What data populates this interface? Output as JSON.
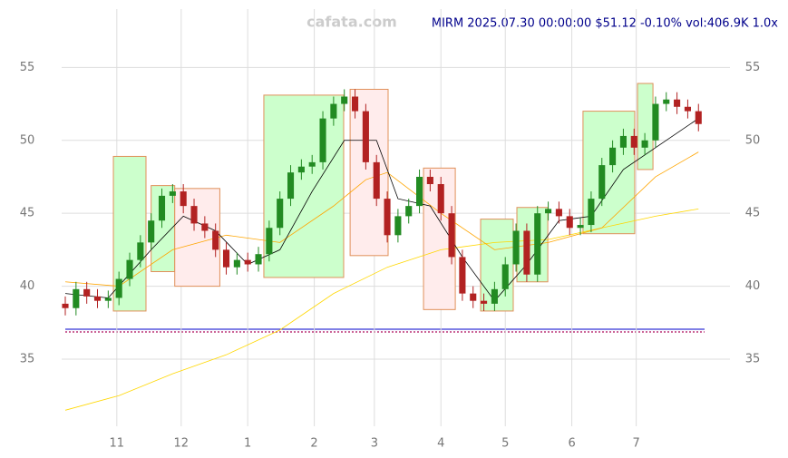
{
  "chart_data": {
    "type": "candlestick",
    "title": "MIRM 2025.07.30 00:00:00 $51.12 -0.10% vol:406.9K 1.0x",
    "watermark": "cafata.com",
    "x": [
      0,
      5,
      10,
      15,
      20,
      25,
      30,
      35,
      40,
      45,
      50,
      55,
      60,
      65,
      70,
      75,
      80,
      85,
      90,
      95,
      100,
      105,
      110,
      115,
      120,
      125,
      130,
      135,
      140,
      145,
      150,
      155,
      160,
      165,
      170,
      175,
      180,
      185,
      190,
      195,
      200,
      205,
      210,
      215,
      220,
      225,
      230,
      235,
      240,
      245,
      250,
      255,
      260,
      265,
      270,
      275,
      280,
      285,
      290,
      295
    ],
    "open": [
      38.8,
      38.5,
      39.8,
      39.3,
      39.0,
      39.2,
      40.5,
      41.8,
      43.0,
      44.5,
      46.2,
      46.5,
      45.5,
      44.3,
      43.8,
      42.5,
      41.3,
      41.8,
      41.5,
      42.2,
      44.0,
      46.0,
      47.8,
      48.2,
      48.5,
      51.5,
      52.5,
      53.0,
      52.0,
      48.5,
      46.0,
      43.5,
      44.8,
      45.5,
      47.5,
      47.0,
      45.0,
      42.0,
      39.5,
      39.0,
      38.8,
      39.8,
      41.5,
      43.8,
      40.8,
      45.0,
      45.3,
      44.8,
      44.0,
      44.2,
      46.0,
      48.3,
      49.5,
      50.3,
      49.5,
      50.0,
      52.5,
      52.8,
      52.3,
      52.0
    ],
    "high": [
      39.3,
      40.3,
      40.3,
      39.8,
      39.7,
      41.0,
      42.3,
      43.5,
      45.0,
      46.7,
      47.0,
      47.0,
      46.0,
      44.8,
      44.3,
      43.0,
      42.3,
      42.3,
      42.7,
      44.5,
      46.5,
      48.3,
      48.7,
      49.0,
      52.0,
      53.0,
      53.5,
      53.5,
      52.5,
      49.0,
      46.5,
      45.3,
      46.0,
      48.0,
      48.0,
      47.5,
      45.5,
      42.5,
      40.0,
      39.5,
      40.3,
      42.0,
      44.3,
      44.3,
      45.5,
      45.8,
      45.8,
      45.3,
      44.7,
      46.5,
      48.8,
      50.0,
      50.8,
      50.8,
      50.5,
      53.0,
      53.3,
      53.3,
      52.8,
      52.5
    ],
    "low": [
      38.0,
      38.0,
      38.8,
      38.5,
      38.5,
      38.7,
      40.0,
      41.3,
      42.5,
      44.0,
      45.7,
      45.0,
      43.8,
      43.3,
      42.0,
      40.8,
      40.8,
      41.0,
      41.0,
      41.7,
      43.5,
      45.5,
      47.3,
      47.7,
      48.0,
      51.0,
      52.0,
      51.5,
      48.0,
      45.5,
      43.0,
      43.0,
      44.3,
      45.0,
      46.5,
      44.5,
      41.5,
      39.0,
      38.5,
      38.3,
      38.3,
      39.3,
      41.0,
      40.3,
      40.3,
      44.5,
      44.3,
      43.5,
      43.5,
      43.7,
      45.5,
      47.8,
      49.0,
      49.0,
      49.0,
      49.5,
      52.0,
      51.8,
      51.5,
      50.62
    ],
    "close": [
      38.5,
      39.8,
      39.3,
      39.0,
      39.2,
      40.5,
      41.8,
      43.0,
      44.5,
      46.2,
      46.5,
      45.5,
      44.3,
      43.8,
      42.5,
      41.3,
      41.8,
      41.5,
      42.2,
      44.0,
      46.0,
      47.8,
      48.2,
      48.5,
      51.5,
      52.5,
      53.0,
      52.0,
      48.5,
      46.0,
      43.5,
      44.8,
      45.5,
      47.5,
      47.0,
      45.0,
      42.0,
      39.5,
      39.0,
      38.8,
      39.8,
      41.5,
      43.8,
      40.8,
      45.0,
      45.3,
      44.8,
      44.0,
      44.2,
      46.0,
      48.3,
      49.5,
      50.3,
      49.5,
      50.0,
      52.5,
      52.8,
      52.3,
      52.0,
      51.12
    ],
    "up_color": "#228b22",
    "down_color": "#b22222",
    "lines": [
      {
        "color": "#ffd700",
        "x": [
          0,
          25,
          50,
          75,
          100,
          125,
          150,
          175,
          200,
          225,
          250,
          275,
          295
        ],
        "values": [
          31.5,
          32.5,
          34.0,
          35.3,
          37.0,
          39.5,
          41.3,
          42.5,
          43.0,
          43.2,
          44.0,
          44.8,
          45.3
        ]
      },
      {
        "color": "#ffa500",
        "x": [
          0,
          25,
          50,
          75,
          100,
          125,
          140,
          150,
          175,
          200,
          225,
          250,
          275,
          295
        ],
        "values": [
          40.3,
          40.0,
          42.5,
          43.5,
          43.0,
          45.5,
          47.3,
          47.8,
          45.0,
          42.5,
          43.0,
          44.0,
          47.5,
          49.2
        ]
      },
      {
        "color": "#000000",
        "x": [
          0,
          20,
          40,
          55,
          70,
          85,
          100,
          115,
          130,
          145,
          155,
          170,
          185,
          200,
          215,
          230,
          245,
          260,
          275,
          295
        ],
        "values": [
          39.5,
          39.2,
          42.5,
          44.8,
          43.8,
          41.5,
          42.5,
          46.5,
          50.0,
          50.0,
          46.0,
          45.5,
          42.0,
          39.0,
          41.5,
          44.5,
          44.8,
          48.0,
          49.5,
          51.5
        ]
      }
    ],
    "boxes": [
      {
        "x": [
          22.4,
          37.6
        ],
        "y": [
          38.3,
          48.9
        ],
        "fill": "#ccffcc"
      },
      {
        "x": [
          40,
          51
        ],
        "y": [
          41.0,
          46.9
        ],
        "fill": "#ccffcc"
      },
      {
        "x": [
          51,
          72
        ],
        "y": [
          40.0,
          46.7
        ],
        "fill": "#ffecec"
      },
      {
        "x": [
          92.5,
          129.7
        ],
        "y": [
          40.6,
          53.1
        ],
        "fill": "#ccffcc"
      },
      {
        "x": [
          132.7,
          150.4
        ],
        "y": [
          42.1,
          53.5
        ],
        "fill": "#ffecec"
      },
      {
        "x": [
          166.9,
          181.7
        ],
        "y": [
          38.4,
          48.1
        ],
        "fill": "#ffecec"
      },
      {
        "x": [
          193.5,
          208.7
        ],
        "y": [
          38.3,
          44.6
        ],
        "fill": "#ccffcc"
      },
      {
        "x": [
          210.4,
          224.8
        ],
        "y": [
          40.3,
          45.4
        ],
        "fill": "#ccffcc"
      },
      {
        "x": [
          241.2,
          265.3
        ],
        "y": [
          43.6,
          52.0
        ],
        "fill": "#ccffcc"
      },
      {
        "x": [
          266.6,
          273.8
        ],
        "y": [
          48.0,
          53.9
        ],
        "fill": "#ccffcc"
      }
    ],
    "xlim": [
      0,
      297
    ],
    "ylim": [
      30.4,
      59.0
    ],
    "xticks": [
      {
        "value": 24,
        "label": "11"
      },
      {
        "value": 54,
        "label": "12"
      },
      {
        "value": 85,
        "label": "1"
      },
      {
        "value": 116,
        "label": "2"
      },
      {
        "value": 144,
        "label": "3"
      },
      {
        "value": 175,
        "label": "4"
      },
      {
        "value": 205,
        "label": "5"
      },
      {
        "value": 236,
        "label": "6"
      },
      {
        "value": 266,
        "label": "7"
      }
    ],
    "yticks": [
      35,
      40,
      45,
      50,
      55
    ],
    "grid": true
  }
}
